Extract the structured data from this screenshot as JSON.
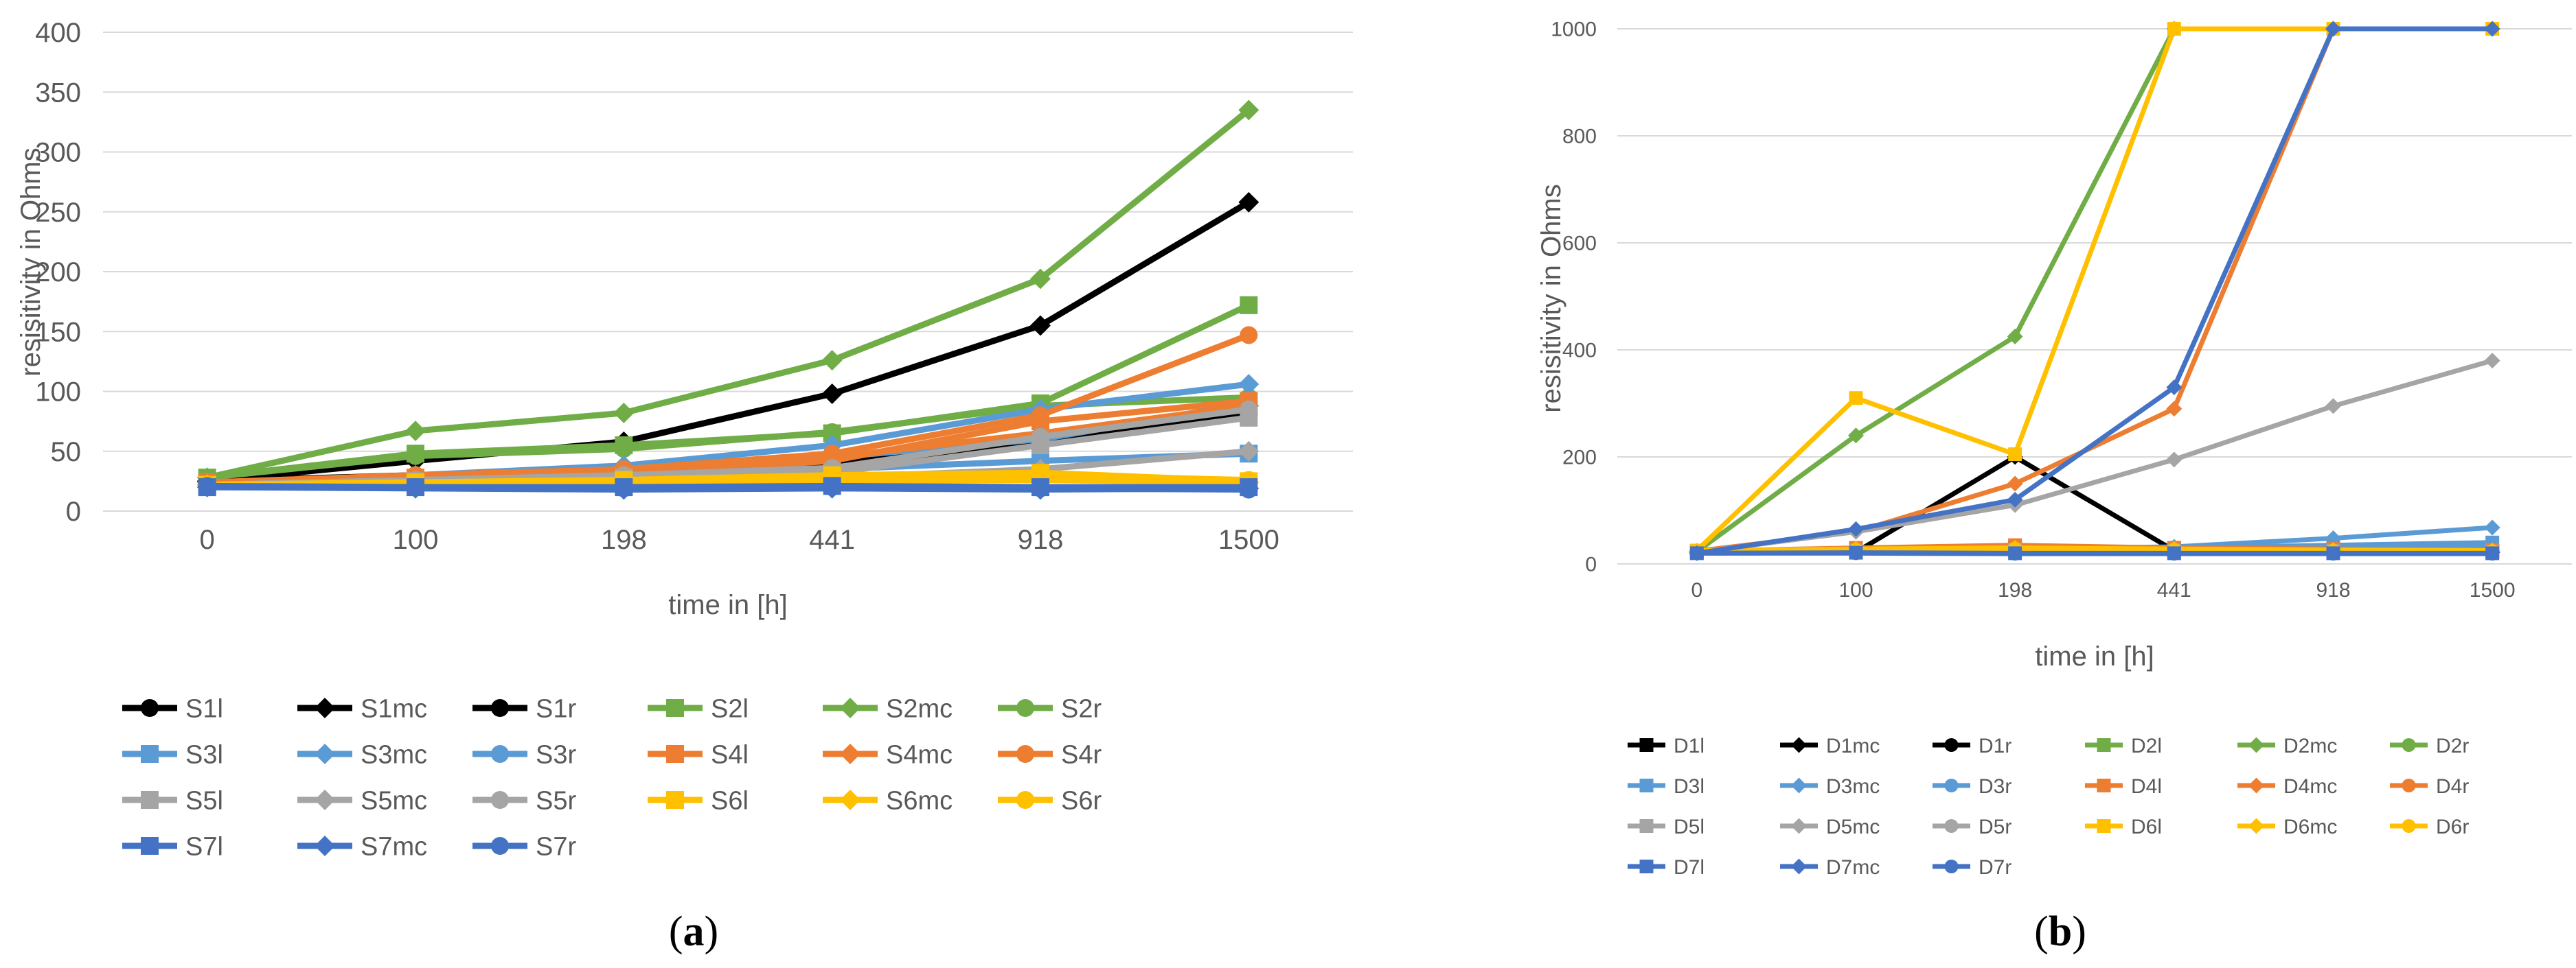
{
  "chart_data": [
    {
      "type": "line",
      "panel_label": "a",
      "xlabel": "time in [h]",
      "ylabel": "resisitivity in Ohms",
      "categories": [
        "0",
        "100",
        "198",
        "441",
        "918",
        "1500"
      ],
      "ylim": [
        0,
        400
      ],
      "yticks": [
        0,
        50,
        100,
        150,
        200,
        250,
        300,
        350,
        400
      ],
      "grid": true,
      "legend_position": "bottom",
      "series": [
        {
          "name": "S1l",
          "color": "#000000",
          "marker": "circle",
          "values": [
            25,
            30,
            35,
            40,
            55,
            80
          ]
        },
        {
          "name": "S1mc",
          "color": "#000000",
          "marker": "diamond",
          "values": [
            25,
            42,
            58,
            98,
            155,
            258
          ]
        },
        {
          "name": "S1r",
          "color": "#000000",
          "marker": "circle",
          "values": [
            25,
            28,
            33,
            42,
            58,
            82
          ]
        },
        {
          "name": "S2l",
          "color": "#70AD47",
          "marker": "square",
          "values": [
            28,
            48,
            55,
            65,
            90,
            172
          ]
        },
        {
          "name": "S2mc",
          "color": "#70AD47",
          "marker": "diamond",
          "values": [
            28,
            67,
            82,
            126,
            194,
            335
          ]
        },
        {
          "name": "S2r",
          "color": "#70AD47",
          "marker": "circle",
          "values": [
            28,
            46,
            52,
            66,
            88,
            95
          ]
        },
        {
          "name": "S3l",
          "color": "#5B9BD5",
          "marker": "square",
          "values": [
            22,
            25,
            28,
            35,
            42,
            48
          ]
        },
        {
          "name": "S3mc",
          "color": "#5B9BD5",
          "marker": "diamond",
          "values": [
            22,
            30,
            38,
            55,
            85,
            106
          ]
        },
        {
          "name": "S3r",
          "color": "#5B9BD5",
          "marker": "circle",
          "values": [
            22,
            27,
            32,
            45,
            60,
            90
          ]
        },
        {
          "name": "S4l",
          "color": "#ED7D31",
          "marker": "square",
          "values": [
            24,
            28,
            30,
            42,
            75,
            92
          ]
        },
        {
          "name": "S4mc",
          "color": "#ED7D31",
          "marker": "diamond",
          "values": [
            24,
            28,
            32,
            45,
            65,
            88
          ]
        },
        {
          "name": "S4r",
          "color": "#ED7D31",
          "marker": "circle",
          "values": [
            24,
            30,
            35,
            48,
            80,
            147
          ]
        },
        {
          "name": "S5l",
          "color": "#A5A5A5",
          "marker": "square",
          "values": [
            22,
            25,
            28,
            32,
            55,
            78
          ]
        },
        {
          "name": "S5mc",
          "color": "#A5A5A5",
          "marker": "diamond",
          "values": [
            22,
            24,
            26,
            28,
            35,
            50
          ]
        },
        {
          "name": "S5r",
          "color": "#A5A5A5",
          "marker": "circle",
          "values": [
            22,
            26,
            30,
            36,
            62,
            85
          ]
        },
        {
          "name": "S6l",
          "color": "#FFC000",
          "marker": "square",
          "values": [
            22,
            24,
            26,
            30,
            32,
            25
          ]
        },
        {
          "name": "S6mc",
          "color": "#FFC000",
          "marker": "diamond",
          "values": [
            22,
            23,
            24,
            25,
            26,
            24
          ]
        },
        {
          "name": "S6r",
          "color": "#FFC000",
          "marker": "circle",
          "values": [
            22,
            24,
            25,
            28,
            30,
            26
          ]
        },
        {
          "name": "S7l",
          "color": "#4472C4",
          "marker": "square",
          "values": [
            20,
            20,
            20,
            21,
            20,
            20
          ]
        },
        {
          "name": "S7mc",
          "color": "#4472C4",
          "marker": "diamond",
          "values": [
            20,
            19,
            18,
            19,
            18,
            19
          ]
        },
        {
          "name": "S7r",
          "color": "#4472C4",
          "marker": "circle",
          "values": [
            21,
            20,
            19,
            20,
            19,
            18
          ]
        }
      ]
    },
    {
      "type": "line",
      "panel_label": "b",
      "xlabel": "time in [h]",
      "ylabel": "resisitivity in Ohms",
      "categories": [
        "0",
        "100",
        "198",
        "441",
        "918",
        "1500"
      ],
      "ylim": [
        0,
        1000
      ],
      "yticks": [
        0,
        200,
        400,
        600,
        800,
        1000
      ],
      "grid": true,
      "legend_position": "bottom",
      "series": [
        {
          "name": "D1l",
          "color": "#000000",
          "marker": "square",
          "values": [
            22,
            25,
            30,
            28,
            25,
            24
          ]
        },
        {
          "name": "D1mc",
          "color": "#000000",
          "marker": "diamond",
          "values": [
            22,
            22,
            200,
            25,
            22,
            22
          ]
        },
        {
          "name": "D1r",
          "color": "#000000",
          "marker": "circle",
          "values": [
            22,
            24,
            28,
            26,
            24,
            23
          ]
        },
        {
          "name": "D2l",
          "color": "#70AD47",
          "marker": "square",
          "values": [
            23,
            25,
            28,
            26,
            25,
            24
          ]
        },
        {
          "name": "D2mc",
          "color": "#70AD47",
          "marker": "diamond",
          "values": [
            23,
            240,
            425,
            1000,
            1000,
            1000
          ]
        },
        {
          "name": "D2r",
          "color": "#70AD47",
          "marker": "circle",
          "values": [
            23,
            25,
            27,
            25,
            24,
            23
          ]
        },
        {
          "name": "D3l",
          "color": "#5B9BD5",
          "marker": "square",
          "values": [
            22,
            24,
            26,
            30,
            35,
            40
          ]
        },
        {
          "name": "D3mc",
          "color": "#5B9BD5",
          "marker": "diamond",
          "values": [
            22,
            25,
            28,
            32,
            48,
            68
          ]
        },
        {
          "name": "D3r",
          "color": "#5B9BD5",
          "marker": "circle",
          "values": [
            22,
            24,
            26,
            28,
            30,
            32
          ]
        },
        {
          "name": "D4l",
          "color": "#ED7D31",
          "marker": "square",
          "values": [
            24,
            30,
            35,
            30,
            28,
            26
          ]
        },
        {
          "name": "D4mc",
          "color": "#ED7D31",
          "marker": "diamond",
          "values": [
            24,
            60,
            150,
            290,
            1000,
            1000
          ]
        },
        {
          "name": "D4r",
          "color": "#ED7D31",
          "marker": "circle",
          "values": [
            24,
            28,
            32,
            28,
            26,
            25
          ]
        },
        {
          "name": "D5l",
          "color": "#A5A5A5",
          "marker": "square",
          "values": [
            22,
            24,
            26,
            25,
            24,
            23
          ]
        },
        {
          "name": "D5mc",
          "color": "#A5A5A5",
          "marker": "diamond",
          "values": [
            22,
            60,
            110,
            195,
            295,
            380
          ]
        },
        {
          "name": "D5r",
          "color": "#A5A5A5",
          "marker": "circle",
          "values": [
            22,
            24,
            25,
            24,
            23,
            22
          ]
        },
        {
          "name": "D6l",
          "color": "#FFC000",
          "marker": "square",
          "values": [
            25,
            310,
            205,
            1000,
            1000,
            1000
          ]
        },
        {
          "name": "D6mc",
          "color": "#FFC000",
          "marker": "diamond",
          "values": [
            25,
            28,
            30,
            28,
            26,
            25
          ]
        },
        {
          "name": "D6r",
          "color": "#FFC000",
          "marker": "circle",
          "values": [
            25,
            27,
            29,
            27,
            25,
            24
          ]
        },
        {
          "name": "D7l",
          "color": "#4472C4",
          "marker": "square",
          "values": [
            20,
            21,
            20,
            20,
            20,
            20
          ]
        },
        {
          "name": "D7mc",
          "color": "#4472C4",
          "marker": "diamond",
          "values": [
            20,
            65,
            120,
            330,
            1000,
            1000
          ]
        },
        {
          "name": "D7r",
          "color": "#4472C4",
          "marker": "circle",
          "values": [
            20,
            20,
            19,
            19,
            19,
            19
          ]
        }
      ]
    }
  ]
}
